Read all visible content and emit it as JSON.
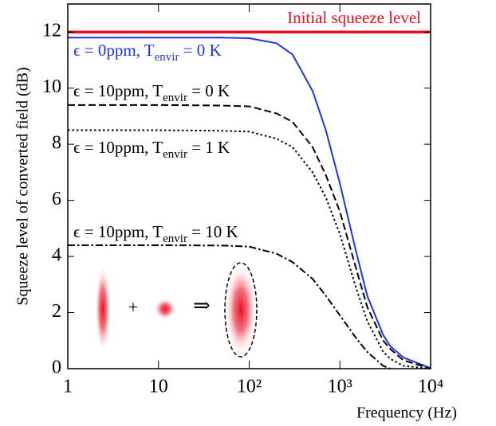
{
  "chart_data": {
    "type": "line",
    "x_label": "Frequency (Hz)",
    "y_label": "Squeeze level of converted field (dB)",
    "log_x": true,
    "xlim": [
      1,
      10000
    ],
    "ylim": [
      0,
      13
    ],
    "xticks": [
      1,
      10,
      {
        "value": 100,
        "label": "10²"
      },
      {
        "value": 1000,
        "label": "10³"
      },
      {
        "value": 10000,
        "label": "10⁴"
      }
    ],
    "yticks": [
      0,
      2,
      4,
      6,
      8,
      10,
      12
    ],
    "x": [
      1,
      10,
      50,
      100,
      200,
      300,
      500,
      700,
      1000,
      1500,
      2000,
      3000,
      3600,
      5000,
      10000
    ],
    "series": [
      {
        "name": "Initial squeeze level",
        "color": "#e8101a",
        "style": "solid",
        "width": 3.5,
        "values": [
          12,
          12,
          12,
          12,
          12,
          12,
          12,
          12,
          12,
          12,
          12,
          12,
          12,
          12,
          12
        ]
      },
      {
        "color": "#2233dd",
        "style": "solid",
        "width": 2,
        "values": [
          11.8,
          11.8,
          11.8,
          11.78,
          11.6,
          11.2,
          9.9,
          8.5,
          6.6,
          4.2,
          2.6,
          1.2,
          0.8,
          0.4,
          0.02
        ]
      },
      {
        "color": "#000000",
        "style": "dashed",
        "width": 2,
        "values": [
          9.4,
          9.4,
          9.38,
          9.35,
          9.1,
          8.8,
          7.9,
          6.9,
          5.6,
          3.6,
          2.2,
          1.0,
          0.7,
          0.3,
          0
        ]
      },
      {
        "color": "#000000",
        "style": "dotted",
        "width": 2,
        "values": [
          8.5,
          8.5,
          8.48,
          8.45,
          8.2,
          7.9,
          7.0,
          6.1,
          4.8,
          2.9,
          1.7,
          0.6,
          0.35,
          0.1,
          0
        ]
      },
      {
        "color": "#000000",
        "style": "dashdot",
        "width": 2,
        "values": [
          4.4,
          4.4,
          4.39,
          4.35,
          4.1,
          3.8,
          3.2,
          2.6,
          1.9,
          1.1,
          0.6,
          0.1,
          0,
          null,
          null
        ]
      }
    ],
    "annotations": [
      {
        "text": "Initial squeeze level",
        "color": "#e8101a"
      },
      {
        "parts": [
          "ϵ = 0ppm, T",
          "envir",
          " = 0 K"
        ],
        "color": "#2233dd"
      },
      {
        "parts": [
          "ϵ = 10ppm, T",
          "envir",
          " = 0 K"
        ],
        "color": "#000000"
      },
      {
        "parts": [
          "ϵ = 10ppm, T",
          "envir",
          " = 1 K"
        ],
        "color": "#000000"
      },
      {
        "parts": [
          "ϵ = 10ppm, T",
          "envir",
          " = 10 K"
        ],
        "color": "#000000"
      }
    ],
    "inset": {
      "plus": "+",
      "arrow": "⇒"
    }
  }
}
